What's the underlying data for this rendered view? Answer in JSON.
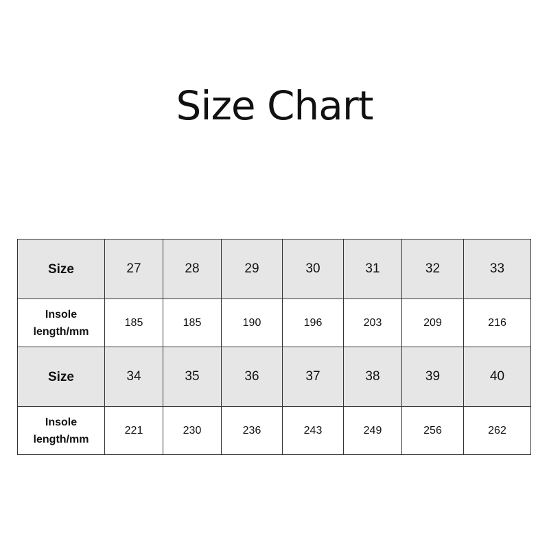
{
  "title": "Size Chart",
  "table": {
    "rows": [
      {
        "label": "Size",
        "values": [
          "27",
          "28",
          "29",
          "30",
          "31",
          "32",
          "33"
        ]
      },
      {
        "label": "Insole length/mm",
        "values": [
          "185",
          "185",
          "190",
          "196",
          "203",
          "209",
          "216"
        ]
      },
      {
        "label": "Size",
        "values": [
          "34",
          "35",
          "36",
          "37",
          "38",
          "39",
          "40"
        ]
      },
      {
        "label": "Insole length/mm",
        "values": [
          "221",
          "230",
          "236",
          "243",
          "249",
          "256",
          "262"
        ]
      }
    ]
  }
}
